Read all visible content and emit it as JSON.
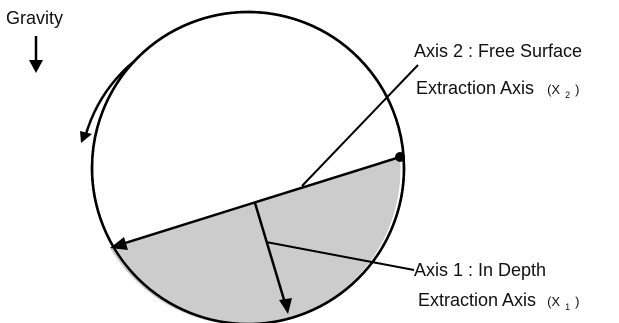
{
  "labels": {
    "gravity": "Gravity",
    "axis2": {
      "line1": "Axis 2 : Free Surface",
      "line2_main": "Extraction Axis",
      "var_open": "(X",
      "var_sub": "2",
      "var_close": ")"
    },
    "axis1": {
      "line1": "Axis 1 : In Depth",
      "line2_main": "Extraction Axis",
      "var_open": "(X",
      "var_sub": "1",
      "var_close": ")"
    }
  },
  "colors": {
    "stroke": "#000000",
    "fill_region": "#cccccc",
    "background": "#ffffff"
  },
  "icons": {
    "gravity_arrow": "down-arrow-icon",
    "rotation_arrow": "curved-arrow-icon",
    "pivot_dot": "dot-icon"
  }
}
